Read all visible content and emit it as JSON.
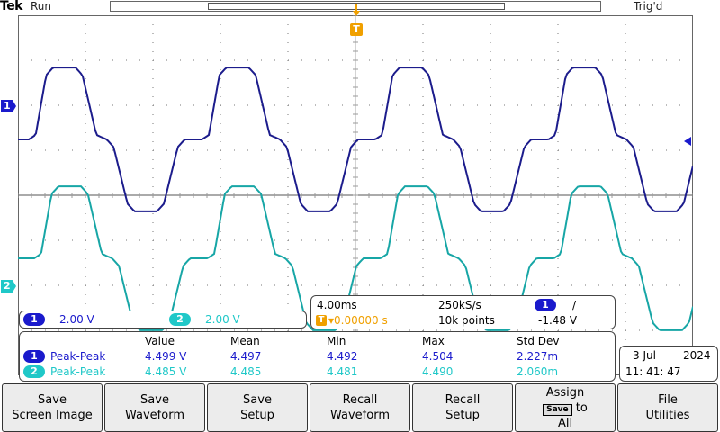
{
  "header": {
    "brand": "Tek",
    "state": "Run",
    "trigger_status": "Trig'd"
  },
  "markers": {
    "trigger": "T",
    "ch1": "1",
    "ch2": "2"
  },
  "colors": {
    "ch1": "#1a1acc",
    "ch2": "#20c8c8",
    "trigger": "#f0a000",
    "trace1": "#1c1c8c",
    "trace2": "#17a6a6"
  },
  "channels": [
    {
      "badge": "1",
      "scale": "2.00 V"
    },
    {
      "badge": "2",
      "scale": "2.00 V"
    }
  ],
  "timebase": {
    "time_div": "4.00ms",
    "sample_rate": "250kS/s",
    "trig_channel": "1",
    "trig_slope": "/",
    "trig_position": "▾0.00000 s",
    "record_length": "10k points",
    "trig_level": "-1.48 V"
  },
  "measurements": {
    "headers": [
      "Value",
      "Mean",
      "Min",
      "Max",
      "Std Dev"
    ],
    "rows": [
      {
        "badge": "1",
        "name": "Peak-Peak",
        "value": "4.499 V",
        "mean": "4.497",
        "min": "4.492",
        "max": "4.504",
        "std": "2.227m"
      },
      {
        "badge": "2",
        "name": "Peak-Peak",
        "value": "4.485 V",
        "mean": "4.485",
        "min": "4.481",
        "max": "4.490",
        "std": "2.060m"
      }
    ]
  },
  "datetime": {
    "date_day": "3 Jul",
    "date_year": "2024",
    "time": "11: 41: 47"
  },
  "menu": {
    "save_screen": "Save\nScreen Image",
    "save_waveform": "Save\nWaveform",
    "save_setup": "Save\nSetup",
    "recall_waveform": "Recall\nWaveform",
    "recall_setup": "Recall\nSetup",
    "assign_top": "Assign",
    "assign_key": "Save",
    "assign_to": "to",
    "assign_bottom": "All",
    "file_utilities": "File\nUtilities"
  }
}
